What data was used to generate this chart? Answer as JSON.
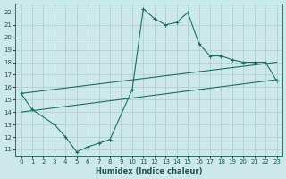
{
  "xlabel": "Humidex (Indice chaleur)",
  "xlim": [
    -0.5,
    23.5
  ],
  "ylim": [
    10.5,
    22.7
  ],
  "xticks": [
    0,
    1,
    2,
    3,
    4,
    5,
    6,
    7,
    8,
    9,
    10,
    11,
    12,
    13,
    14,
    15,
    16,
    17,
    18,
    19,
    20,
    21,
    22,
    23
  ],
  "yticks": [
    11,
    12,
    13,
    14,
    15,
    16,
    17,
    18,
    19,
    20,
    21,
    22
  ],
  "bg_color": "#cce8e8",
  "line_color": "#1a6e62",
  "grid_color": "#aacccc",
  "curve1_x": [
    0,
    1,
    3,
    4,
    5,
    6,
    7,
    8,
    10,
    11,
    12,
    13,
    14,
    15,
    16,
    17,
    18,
    19,
    20,
    21,
    22,
    23
  ],
  "curve1_y": [
    15.5,
    14.2,
    13.0,
    12.0,
    10.8,
    11.2,
    11.5,
    11.8,
    15.8,
    22.3,
    21.5,
    21.0,
    21.2,
    22.0,
    19.5,
    18.5,
    18.5,
    18.2,
    18.0,
    18.0,
    18.0,
    16.5
  ],
  "curve2_x": [
    0,
    23
  ],
  "curve2_y": [
    15.5,
    18.0
  ],
  "curve3_x": [
    0,
    23
  ],
  "curve3_y": [
    14.0,
    16.6
  ],
  "font_color": "#1a5555",
  "marker": "+"
}
